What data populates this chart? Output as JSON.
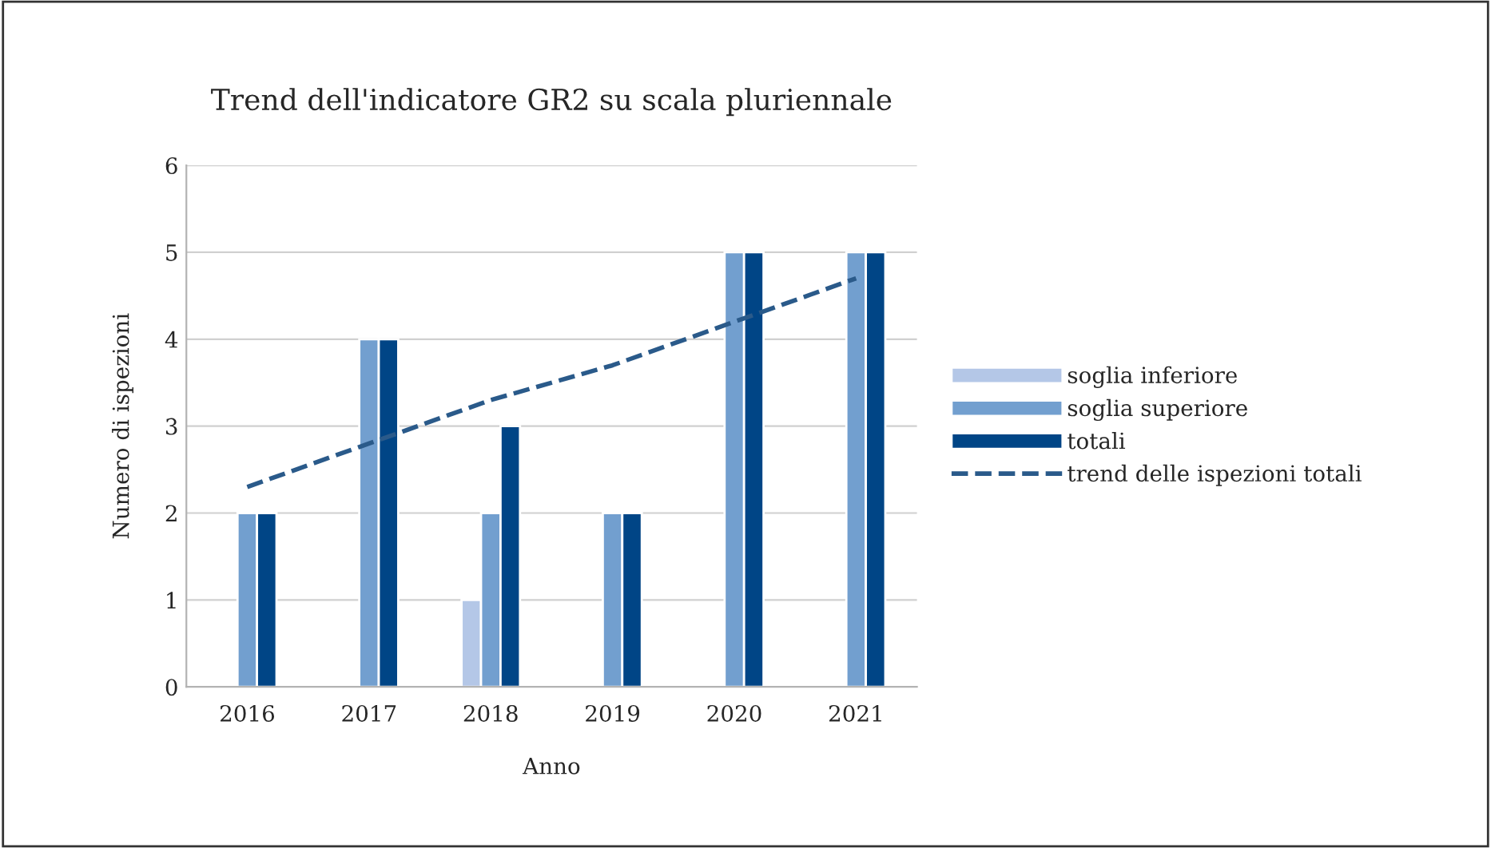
{
  "chart_data": {
    "type": "bar",
    "title": "Trend dell'indicatore GR2 su scala pluriennale",
    "xlabel": "Anno",
    "ylabel": "Numero di ispezioni",
    "categories": [
      "2016",
      "2017",
      "2018",
      "2019",
      "2020",
      "2021"
    ],
    "series": [
      {
        "name": "soglia inferiore",
        "color": "#b4c7e7",
        "values": [
          null,
          null,
          1,
          null,
          null,
          null
        ]
      },
      {
        "name": "soglia superiore",
        "color": "#729fcf",
        "values": [
          2,
          4,
          2,
          2,
          5,
          5
        ]
      },
      {
        "name": "totali",
        "color": "#004586",
        "values": [
          2,
          4,
          3,
          2,
          5,
          5
        ]
      },
      {
        "name": "trend delle ispezioni totali",
        "type": "line",
        "color": "#2a5a8a",
        "line_style": "dashed",
        "values": [
          2.3,
          2.8,
          3.3,
          3.7,
          4.2,
          4.7
        ]
      }
    ],
    "ylim": [
      0,
      6
    ],
    "yticks": [
      0,
      1,
      2,
      3,
      4,
      5,
      6
    ],
    "grid": "y",
    "legend": "right"
  }
}
